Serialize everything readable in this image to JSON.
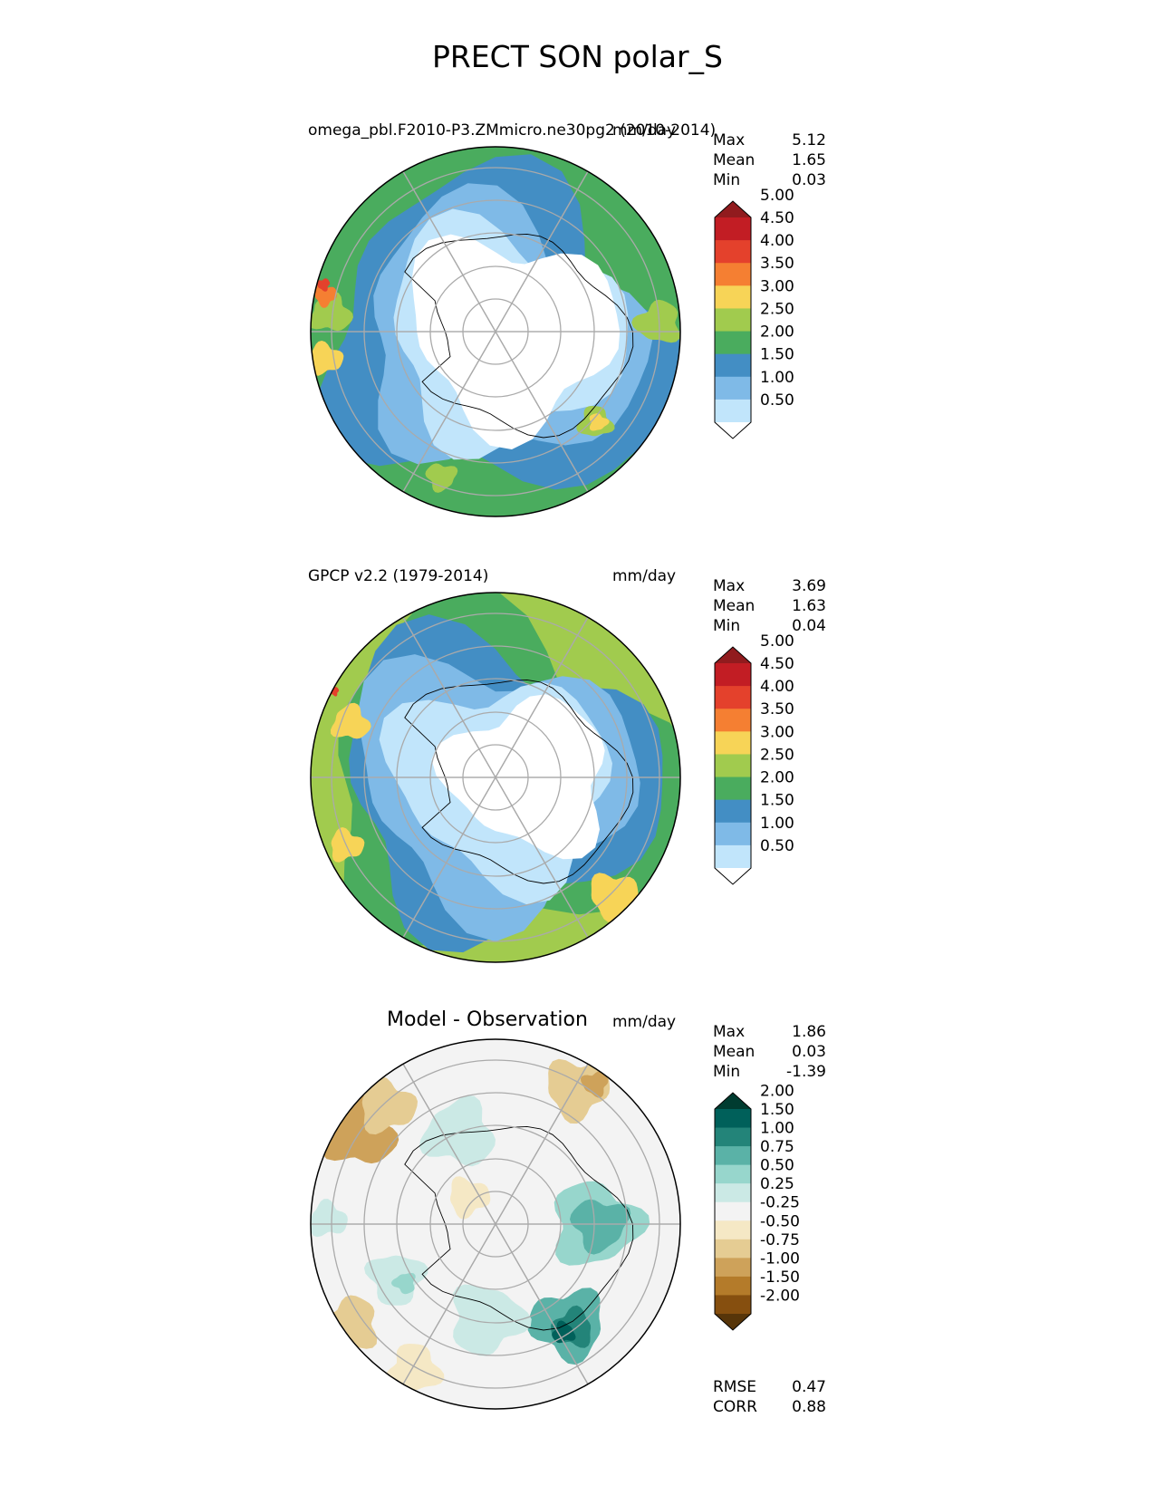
{
  "chart_data": [
    {
      "type": "heatmap",
      "projection": "south-polar-stereographic",
      "suptitle": "PRECT SON polar_S",
      "left_title": "omega_pbl.F2010-P3.ZMmicro.ne30pg2 (2010-2014)",
      "units": "mm/day",
      "stats": {
        "Max": "5.12",
        "Mean": "1.65",
        "Min": "0.03"
      },
      "colorbar": {
        "levels": [
          "0.50",
          "1.00",
          "1.50",
          "2.00",
          "2.50",
          "3.00",
          "3.50",
          "4.00",
          "4.50",
          "5.00"
        ],
        "colors": [
          "#ffffff",
          "#c1e5fb",
          "#7fbae7",
          "#438ec4",
          "#4aac5e",
          "#a1cb4e",
          "#f7d457",
          "#f57f32",
          "#e4412c",
          "#c21d24",
          "#911b1e"
        ]
      }
    },
    {
      "type": "heatmap",
      "projection": "south-polar-stereographic",
      "left_title": "GPCP v2.2 (1979-2014)",
      "units": "mm/day",
      "stats": {
        "Max": "3.69",
        "Mean": "1.63",
        "Min": "0.04"
      },
      "colorbar": {
        "levels": [
          "0.50",
          "1.00",
          "1.50",
          "2.00",
          "2.50",
          "3.00",
          "3.50",
          "4.00",
          "4.50",
          "5.00"
        ],
        "colors": [
          "#ffffff",
          "#c1e5fb",
          "#7fbae7",
          "#438ec4",
          "#4aac5e",
          "#a1cb4e",
          "#f7d457",
          "#f57f32",
          "#e4412c",
          "#c21d24",
          "#911b1e"
        ]
      }
    },
    {
      "type": "heatmap",
      "projection": "south-polar-stereographic",
      "center_title": "Model - Observation",
      "units": "mm/day",
      "stats": {
        "Max": "1.86",
        "Mean": "0.03",
        "Min": "-1.39"
      },
      "metrics": {
        "RMSE": "0.47",
        "CORR": "0.88"
      },
      "colorbar": {
        "levels": [
          "-2.00",
          "-1.50",
          "-1.00",
          "-0.75",
          "-0.50",
          "-0.25",
          "0.25",
          "0.50",
          "0.75",
          "1.00",
          "1.50",
          "2.00"
        ],
        "colors": [
          "#573509",
          "#864f0f",
          "#b47b2a",
          "#cea25a",
          "#e5cc93",
          "#f5e8c5",
          "#f3f3f3",
          "#cbe9e5",
          "#97d6cc",
          "#5ab2a7",
          "#238479",
          "#00605a",
          "#003c30"
        ]
      }
    }
  ]
}
